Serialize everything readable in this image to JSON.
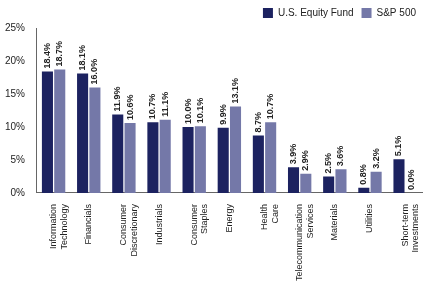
{
  "chart_data": {
    "type": "bar",
    "categories": [
      "Information Technology",
      "Financials",
      "Consumer Discretionary",
      "Industrials",
      "Consumer Staples",
      "Energy",
      "Health Care",
      "Telecommunication Services",
      "Materials",
      "Utilities",
      "Short-term Investments"
    ],
    "series": [
      {
        "name": "U.S. Equity Fund",
        "color": "#1c2260",
        "values": [
          18.4,
          18.1,
          11.9,
          10.7,
          10.0,
          9.9,
          8.7,
          3.9,
          2.5,
          0.8,
          5.1
        ],
        "value_labels": [
          "18.4%",
          "18.1%",
          "11.9%",
          "10.7%",
          "10.0%",
          "9.9%",
          "8.7%",
          "3.9%",
          "2.5%",
          "0.8%",
          "5.1%"
        ]
      },
      {
        "name": "S&P 500",
        "color": "#7478a8",
        "values": [
          18.7,
          16.0,
          10.6,
          11.1,
          10.1,
          13.1,
          10.7,
          2.9,
          3.6,
          3.2,
          0.0
        ],
        "value_labels": [
          "18.7%",
          "16.0%",
          "10.6%",
          "11.1%",
          "10.1%",
          "13.1%",
          "10.7%",
          "2.9%",
          "3.6%",
          "3.2%",
          "0.0%"
        ]
      }
    ],
    "ylim": [
      0,
      25
    ],
    "yticks": [
      {
        "value": 0,
        "label": "0%"
      },
      {
        "value": 5,
        "label": "5%"
      },
      {
        "value": 10,
        "label": "10%"
      },
      {
        "value": 15,
        "label": "15%"
      },
      {
        "value": 20,
        "label": "20%"
      },
      {
        "value": 25,
        "label": "25%"
      }
    ],
    "grid": false,
    "legend": "upper right",
    "data_labels": true
  }
}
